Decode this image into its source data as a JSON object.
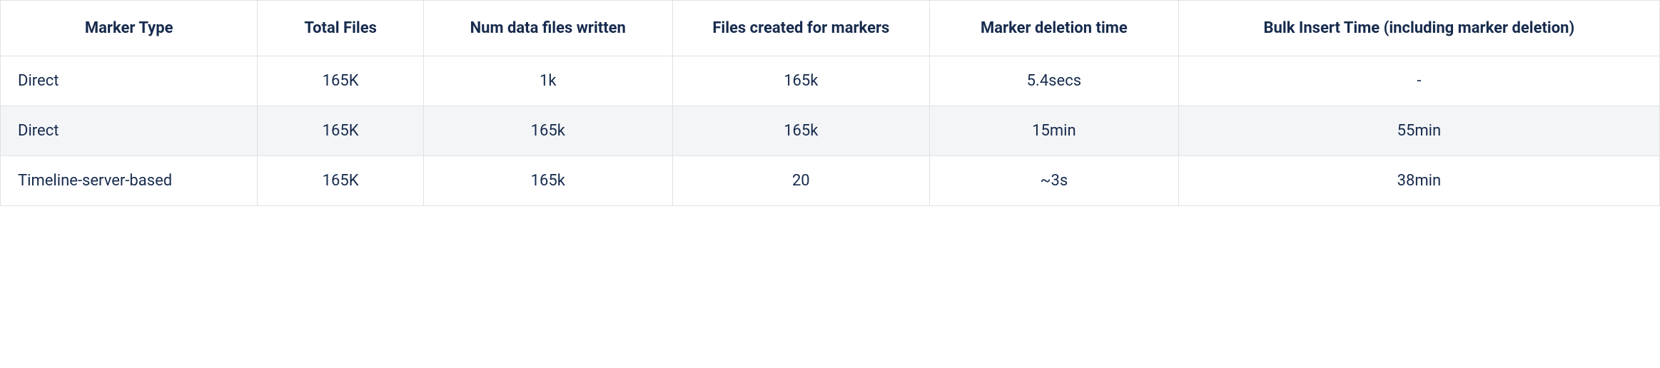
{
  "table": {
    "columns": [
      {
        "label": "Marker Type",
        "align_header": "center",
        "align_cell": "left"
      },
      {
        "label": "Total Files",
        "align_header": "center",
        "align_cell": "center"
      },
      {
        "label": "Num data files written",
        "align_header": "center",
        "align_cell": "center"
      },
      {
        "label": "Files created for markers",
        "align_header": "center",
        "align_cell": "center"
      },
      {
        "label": "Marker deletion time",
        "align_header": "center",
        "align_cell": "center"
      },
      {
        "label": "Bulk Insert Time (including marker deletion)",
        "align_header": "center",
        "align_cell": "center"
      }
    ],
    "rows": [
      {
        "row_background": "#ffffff",
        "cells": [
          "Direct",
          "165K",
          "1k",
          "165k",
          "5.4secs",
          "-"
        ]
      },
      {
        "row_background": "#f4f5f7",
        "cells": [
          "Direct",
          "165K",
          "165k",
          "165k",
          "15min",
          "55min"
        ]
      },
      {
        "row_background": "#ffffff",
        "cells": [
          "Timeline-server-based",
          "165K",
          "165k",
          "20",
          "~3s",
          "38min"
        ]
      }
    ],
    "border_color": "#dfe1e6",
    "header_background": "#ffffff",
    "text_color": "#172b4d",
    "header_font_weight": 700,
    "cell_font_weight": 400,
    "font_size_pt": 16
  }
}
